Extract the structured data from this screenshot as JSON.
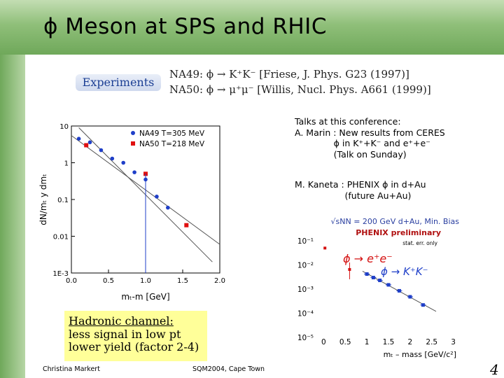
{
  "slide": {
    "title": "ϕ Meson at SPS and RHIC",
    "experiments_label": "Experiments",
    "experiments": [
      "NA49: ϕ → K⁺K⁻   [Friese, J. Phys. G23 (1997)]",
      "NA50: ϕ → μ⁺μ⁻   [Willis, Nucl. Phys. A661 (1999)]"
    ],
    "talks": "Talks at this conference:\nA. Marin : New results from CERES\n              ϕ in K⁺+K⁻ and e⁺+e⁻\n              (Talk on Sunday)",
    "talks2": "M. Kaneta : PHENIX ϕ in d+Au\n                  (future Au+Au)",
    "hadronic_title": "Hadronic channel:",
    "hadronic_lines": [
      "less signal in low pt",
      "lower yield (factor 2-4)"
    ],
    "footer_left": "Christina Markert",
    "footer_center": "SQM2004, Cape Town",
    "page_number": "4"
  },
  "chart_data": [
    {
      "type": "scatter",
      "title": "",
      "xlabel": "mₜ-m  [GeV]",
      "ylabel": "dN/mₜ  y dmₜ",
      "xlim": [
        0.0,
        2.0
      ],
      "ylim": [
        0.001,
        10
      ],
      "yscale": "log",
      "x_ticks": [
        "0.0",
        "0.5",
        "1.0",
        "1.5",
        "2.0"
      ],
      "y_ticks": [
        "10",
        "1",
        "0.1",
        "0.01",
        "1E-3"
      ],
      "legend_position": "top-right",
      "series": [
        {
          "name": "NA49 T=305 MeV",
          "color": "#1f3fc8",
          "x": [
            0.1,
            0.25,
            0.4,
            0.55,
            0.7,
            0.85,
            1.0,
            1.15,
            1.3,
            1.55
          ],
          "y": [
            4.5,
            3.6,
            2.2,
            1.3,
            1.0,
            0.55,
            0.35,
            0.12,
            0.06,
            0.02
          ]
        },
        {
          "name": "NA50 T=218 MeV",
          "color": "#e01010",
          "x": [
            0.2,
            1.0,
            1.55
          ],
          "y": [
            3.0,
            0.5,
            0.02
          ]
        }
      ]
    },
    {
      "type": "scatter",
      "title": "√sNN = 200 GeV d+Au, Min. Bias",
      "subtitle": "PHENIX preliminary",
      "annotation": "stat. err. only",
      "xlabel": "mₜ – mass [GeV/c²]",
      "ylabel": "",
      "xlim": [
        -0.2,
        3.2
      ],
      "ylim": [
        1e-05,
        0.1
      ],
      "yscale": "log",
      "x_ticks": [
        "0",
        "0.5",
        "1",
        "1.5",
        "2",
        "2.5",
        "3"
      ],
      "y_ticks": [
        "10⁻¹",
        "10⁻²",
        "10⁻³",
        "10⁻⁴",
        "10⁻⁵"
      ],
      "series": [
        {
          "name": "ϕ → e⁺e⁻",
          "color": "#d41010",
          "x": [
            0.03,
            0.6
          ],
          "y": [
            0.05,
            0.0065
          ]
        },
        {
          "name": "ϕ → K⁺K⁻",
          "color": "#1f3fc8",
          "x": [
            1.0,
            1.15,
            1.3,
            1.5,
            1.75,
            2.0,
            2.3
          ],
          "y": [
            0.0042,
            0.003,
            0.0023,
            0.0015,
            0.00085,
            0.00048,
            0.00022
          ]
        }
      ]
    }
  ]
}
